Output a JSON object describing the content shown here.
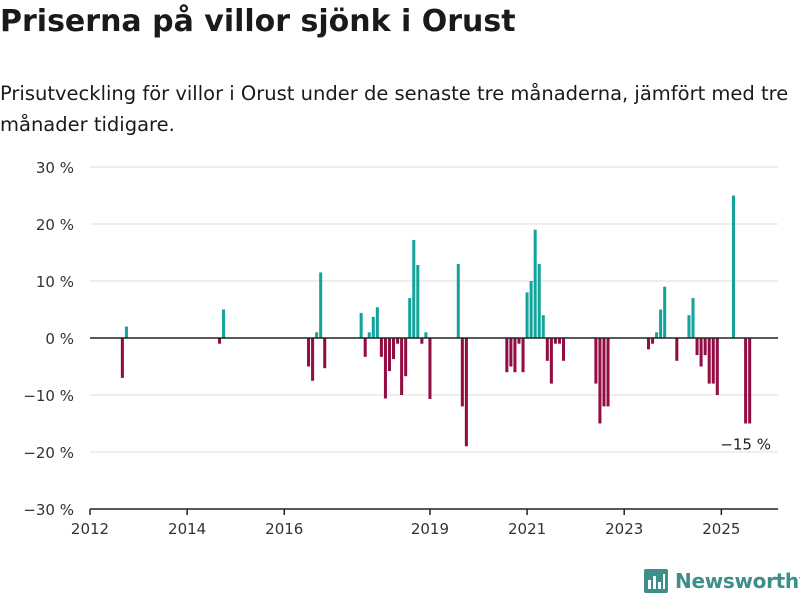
{
  "title": "Priserna på villor sjönk i Orust",
  "subtitle": "Prisutveckling för villor i Orust under de senaste tre månaderna, jämfört med tre månader tidigare.",
  "brand": {
    "name": "Newsworthy",
    "icon": "newsworthy-logo-icon",
    "color": "#3e8e89"
  },
  "colors": {
    "positive": "#14a39b",
    "negative": "#930c43",
    "grid": "#dddddd",
    "axis": "#222222"
  },
  "chart_data": {
    "type": "bar",
    "ylim": [
      -30,
      30
    ],
    "yticks": [
      -30,
      -20,
      -10,
      0,
      10,
      20,
      30
    ],
    "ytick_labels": [
      "−30 %",
      "−20 %",
      "−10 %",
      "0 %",
      "10 %",
      "20 %",
      "30 %"
    ],
    "xticks": [
      "2012-01",
      "2014-01",
      "2016-01",
      "2019-01",
      "2021-01",
      "2023-01",
      "2025-01"
    ],
    "xtick_labels": [
      "2012",
      "2014",
      "2016",
      "2019",
      "2021",
      "2023",
      "2025"
    ],
    "xlim": [
      "2012-01",
      "2026-03"
    ],
    "annotation": {
      "x": "2025-07",
      "y": -15,
      "text": "−15 %"
    },
    "x": [
      "2012-09",
      "2012-10",
      "2014-09",
      "2014-10",
      "2016-07",
      "2016-08",
      "2016-09",
      "2016-10",
      "2016-11",
      "2017-08",
      "2017-09",
      "2017-10",
      "2017-11",
      "2017-12",
      "2018-01",
      "2018-02",
      "2018-03",
      "2018-04",
      "2018-05",
      "2018-06",
      "2018-07",
      "2018-08",
      "2018-09",
      "2018-10",
      "2018-11",
      "2018-12",
      "2018-13",
      "2019-08",
      "2019-09",
      "2019-10",
      "2020-08",
      "2020-09",
      "2020-10",
      "2020-11",
      "2020-12",
      "2021-01",
      "2021-02",
      "2021-03",
      "2021-04",
      "2021-05",
      "2021-06",
      "2021-07",
      "2021-08",
      "2021-09",
      "2021-10",
      "2022-06",
      "2022-07",
      "2022-08",
      "2022-09",
      "2023-07",
      "2023-08",
      "2023-09",
      "2023-10",
      "2023-11",
      "2024-02",
      "2024-05",
      "2024-06",
      "2024-07",
      "2024-08",
      "2024-09",
      "2024-10",
      "2024-11",
      "2024-12",
      "2025-04",
      "2025-07",
      "2025-08"
    ],
    "values": [
      -7,
      2,
      -1,
      5,
      -5,
      -7.5,
      1,
      11.5,
      -5.3,
      4.4,
      -3.3,
      1,
      3.7,
      5.4,
      -3.3,
      -10.6,
      -5.8,
      -3.7,
      -1,
      -10,
      -6.7,
      7,
      17.2,
      12.8,
      -1,
      1,
      -10.7,
      13,
      -12,
      -19,
      -6,
      -5,
      -6,
      -1,
      -6,
      8,
      10,
      19,
      13,
      4,
      -4,
      -8,
      -1,
      -1,
      -4,
      -8,
      -15,
      -12,
      -12,
      -2,
      -1,
      1,
      5,
      9,
      -4,
      4,
      7,
      -3,
      -5,
      -3,
      -8,
      -8,
      -10,
      25,
      -15,
      -15
    ]
  }
}
